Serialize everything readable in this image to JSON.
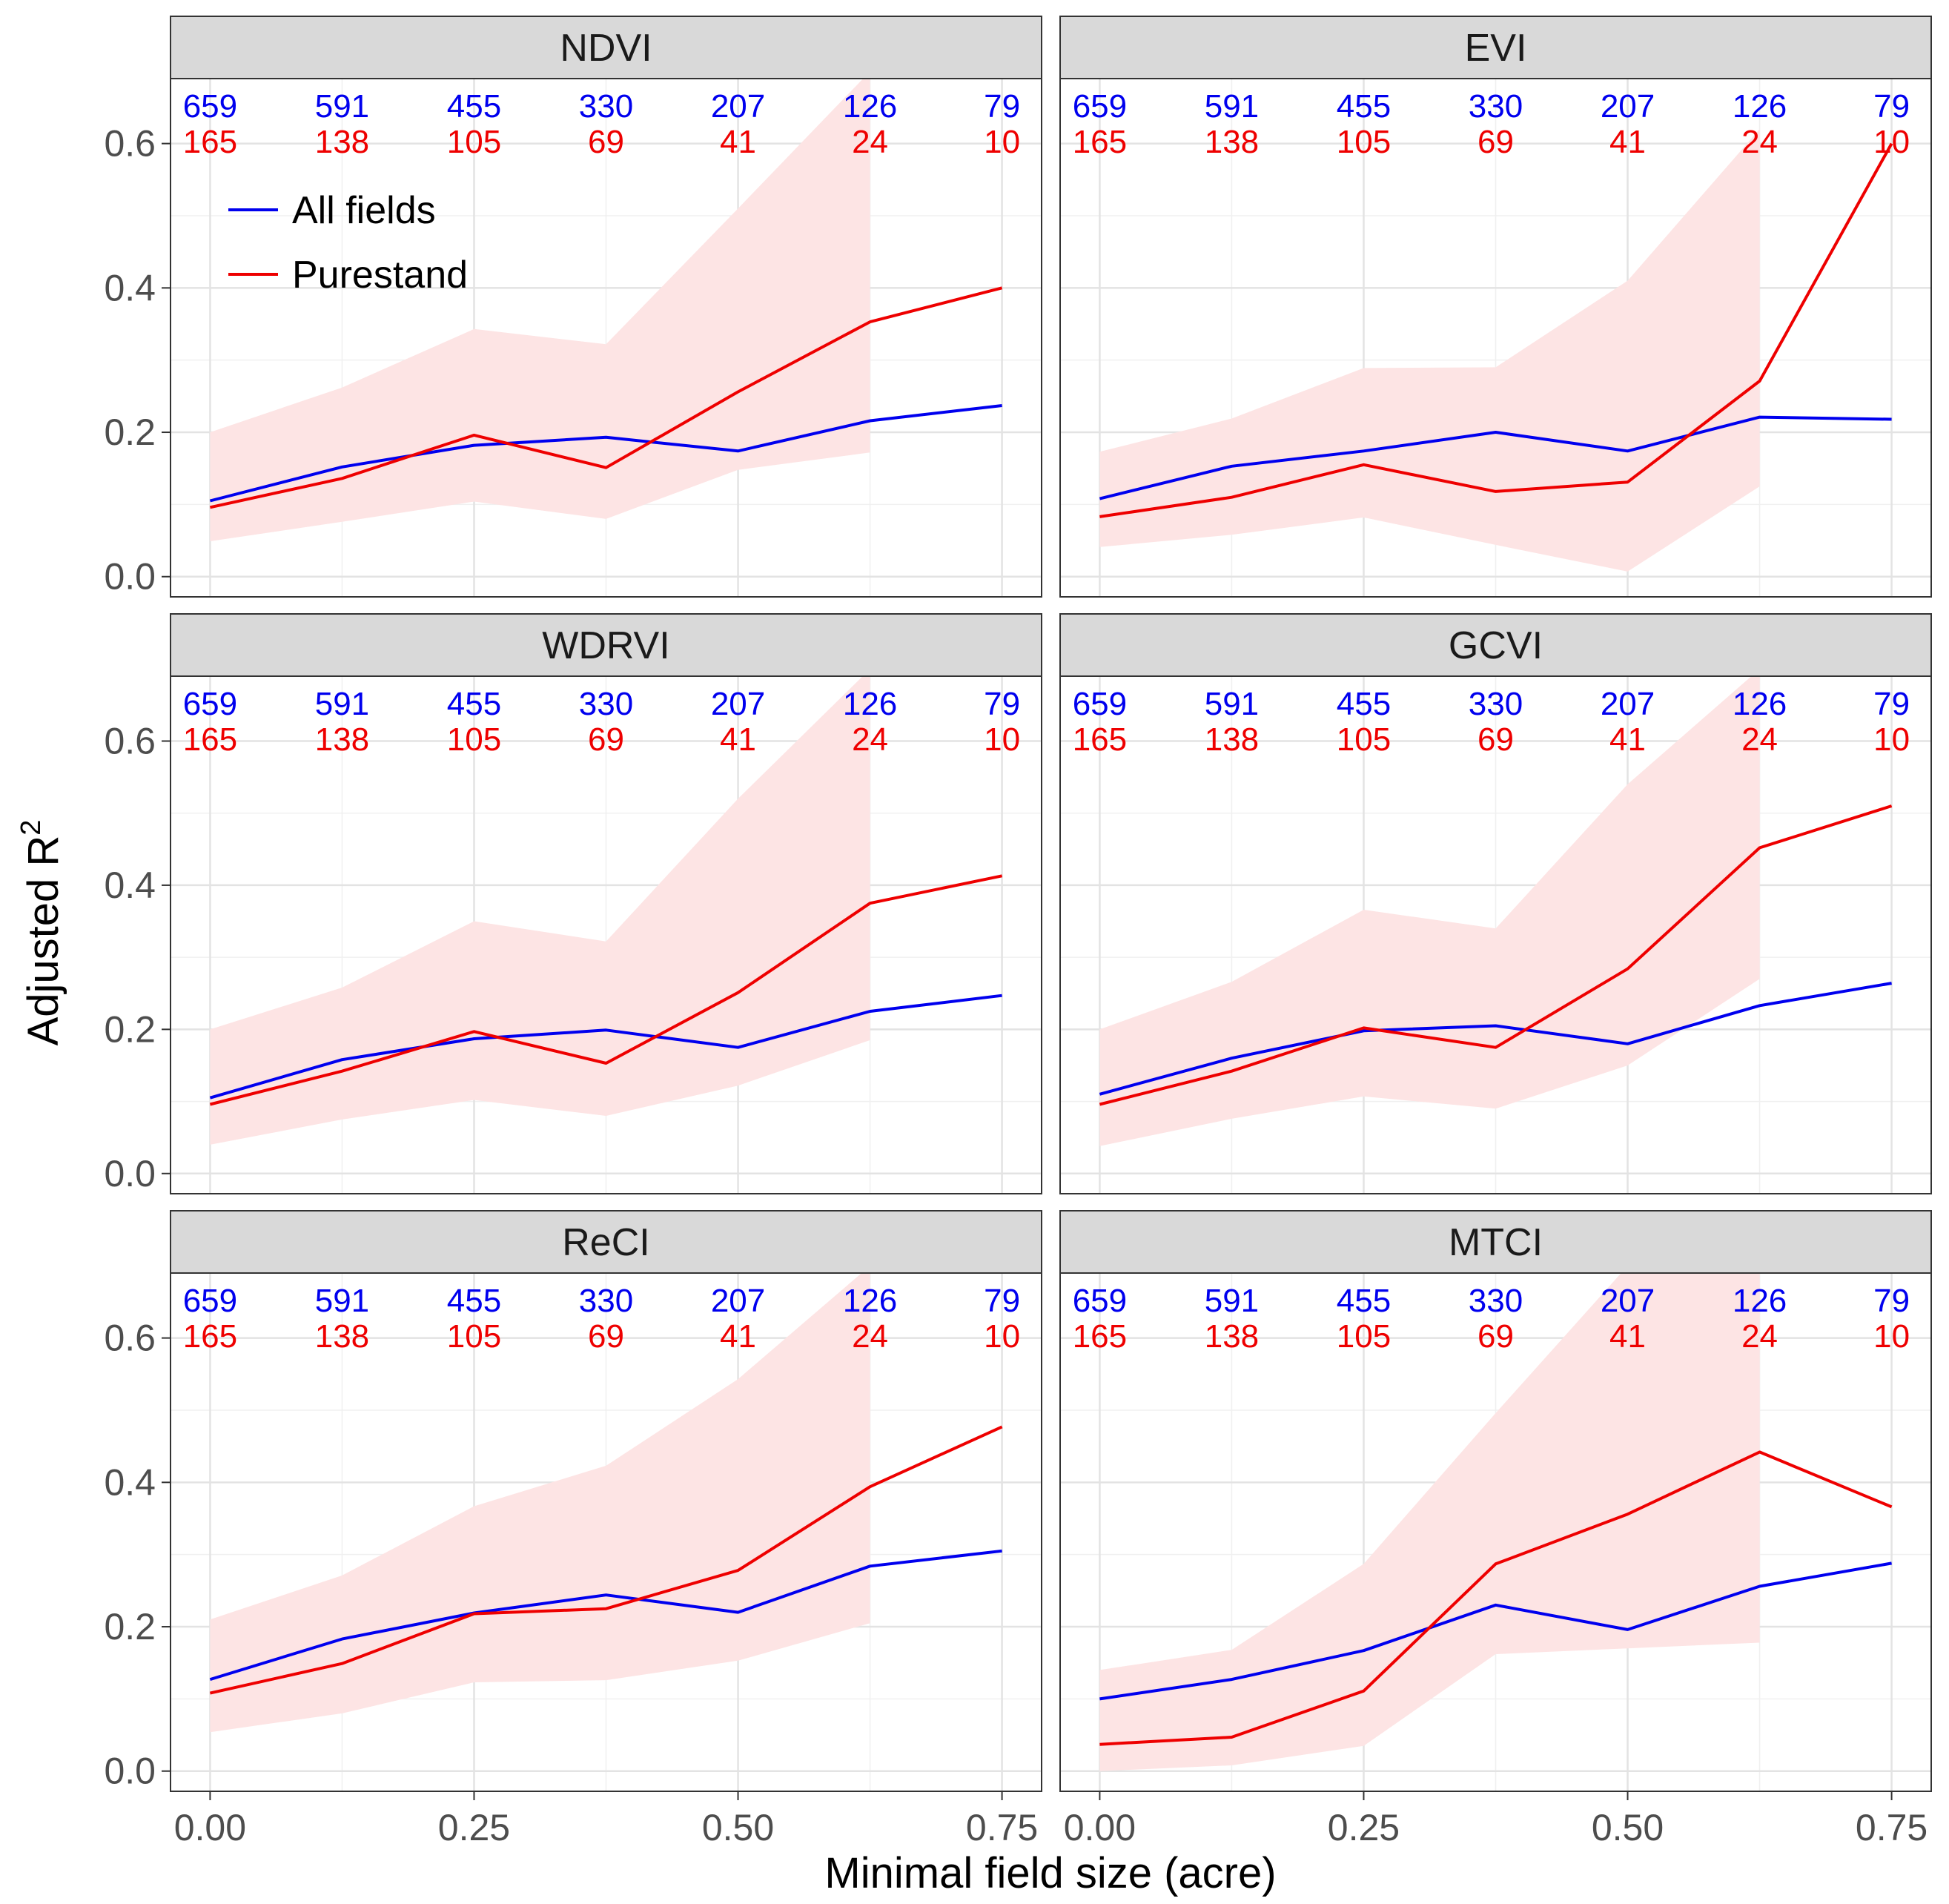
{
  "chart_data": {
    "type": "line",
    "title": "",
    "xlabel": "Minimal field size (acre)",
    "ylabel_main": "Adjusted R",
    "ylabel_sup": "2",
    "xlim": [
      -0.0375,
      0.7875
    ],
    "ylim": [
      -0.028,
      0.69
    ],
    "x": [
      0,
      0.125,
      0.25,
      0.375,
      0.5,
      0.625,
      0.75
    ],
    "x_ticks": [
      0,
      0.25,
      0.5,
      0.75
    ],
    "x_tick_labels": [
      "0.00",
      "0.25",
      "0.50",
      "0.75"
    ],
    "y_ticks": [
      0,
      0.2,
      0.4,
      0.6
    ],
    "y_tick_labels": [
      "0.0",
      "0.2",
      "0.4",
      "0.6"
    ],
    "legend": {
      "position": "top-left inside first panel",
      "entries": [
        {
          "label": "All fields",
          "color": "#0000ee"
        },
        {
          "label": "Purestand",
          "color": "#ee0000"
        }
      ]
    },
    "counts_all_fields": [
      "659",
      "591",
      "455",
      "330",
      "207",
      "126",
      "79"
    ],
    "counts_purestand": [
      "165",
      "138",
      "105",
      "69",
      "41",
      "24",
      "10"
    ],
    "colors": {
      "all_fields": "#0000ee",
      "purestand": "#ee0000",
      "ribbon": "#fde4e4",
      "strip": "#d9d9d9"
    },
    "panels": [
      {
        "title": "NDVI",
        "all_fields": [
          0.105,
          0.152,
          0.182,
          0.193,
          0.174,
          0.216,
          0.237
        ],
        "purestand": [
          0.096,
          0.136,
          0.196,
          0.151,
          0.256,
          0.353,
          0.4
        ],
        "ribbon_x": [
          0,
          0.125,
          0.25,
          0.375,
          0.5,
          0.625
        ],
        "ribbon_lower": [
          0.049,
          0.076,
          0.104,
          0.08,
          0.148,
          0.172
        ],
        "ribbon_upper": [
          0.2,
          0.262,
          0.343,
          0.322,
          0.51,
          0.7
        ]
      },
      {
        "title": "EVI",
        "all_fields": [
          0.108,
          0.153,
          0.174,
          0.2,
          0.174,
          0.221,
          0.218
        ],
        "purestand": [
          0.083,
          0.11,
          0.155,
          0.118,
          0.131,
          0.271,
          0.6
        ],
        "ribbon_x": [
          0,
          0.125,
          0.25,
          0.375,
          0.5,
          0.625
        ],
        "ribbon_lower": [
          0.041,
          0.058,
          0.082,
          0.044,
          0.007,
          0.125
        ],
        "ribbon_upper": [
          0.173,
          0.219,
          0.289,
          0.29,
          0.41,
          0.62
        ]
      },
      {
        "title": "WDRVI",
        "all_fields": [
          0.105,
          0.158,
          0.187,
          0.199,
          0.175,
          0.225,
          0.247
        ],
        "purestand": [
          0.096,
          0.142,
          0.197,
          0.153,
          0.251,
          0.375,
          0.413
        ],
        "ribbon_x": [
          0,
          0.125,
          0.25,
          0.375,
          0.5,
          0.625
        ],
        "ribbon_lower": [
          0.04,
          0.075,
          0.102,
          0.08,
          0.122,
          0.185
        ],
        "ribbon_upper": [
          0.2,
          0.258,
          0.35,
          0.322,
          0.52,
          0.7
        ]
      },
      {
        "title": "GCVI",
        "all_fields": [
          0.11,
          0.16,
          0.198,
          0.205,
          0.18,
          0.233,
          0.264
        ],
        "purestand": [
          0.096,
          0.142,
          0.202,
          0.175,
          0.284,
          0.452,
          0.51
        ],
        "ribbon_x": [
          0,
          0.125,
          0.25,
          0.375,
          0.5,
          0.625
        ],
        "ribbon_lower": [
          0.038,
          0.076,
          0.107,
          0.09,
          0.15,
          0.27
        ],
        "ribbon_upper": [
          0.2,
          0.266,
          0.366,
          0.34,
          0.54,
          0.7
        ]
      },
      {
        "title": "ReCI",
        "all_fields": [
          0.127,
          0.183,
          0.219,
          0.244,
          0.22,
          0.284,
          0.305
        ],
        "purestand": [
          0.108,
          0.149,
          0.218,
          0.225,
          0.278,
          0.394,
          0.477
        ],
        "ribbon_x": [
          0,
          0.125,
          0.25,
          0.375,
          0.5,
          0.625
        ],
        "ribbon_lower": [
          0.054,
          0.08,
          0.123,
          0.126,
          0.153,
          0.205
        ],
        "ribbon_upper": [
          0.21,
          0.271,
          0.367,
          0.423,
          0.543,
          0.7
        ]
      },
      {
        "title": "MTCI",
        "all_fields": [
          0.1,
          0.127,
          0.167,
          0.23,
          0.196,
          0.256,
          0.288
        ],
        "purestand": [
          0.037,
          0.047,
          0.111,
          0.287,
          0.356,
          0.442,
          0.366
        ],
        "ribbon_x": [
          0,
          0.125,
          0.25,
          0.375,
          0.5,
          0.625
        ],
        "ribbon_lower": [
          0.0,
          0.008,
          0.035,
          0.162,
          0.17,
          0.178
        ],
        "ribbon_upper": [
          0.14,
          0.168,
          0.287,
          0.496,
          0.7,
          0.7
        ]
      }
    ]
  }
}
